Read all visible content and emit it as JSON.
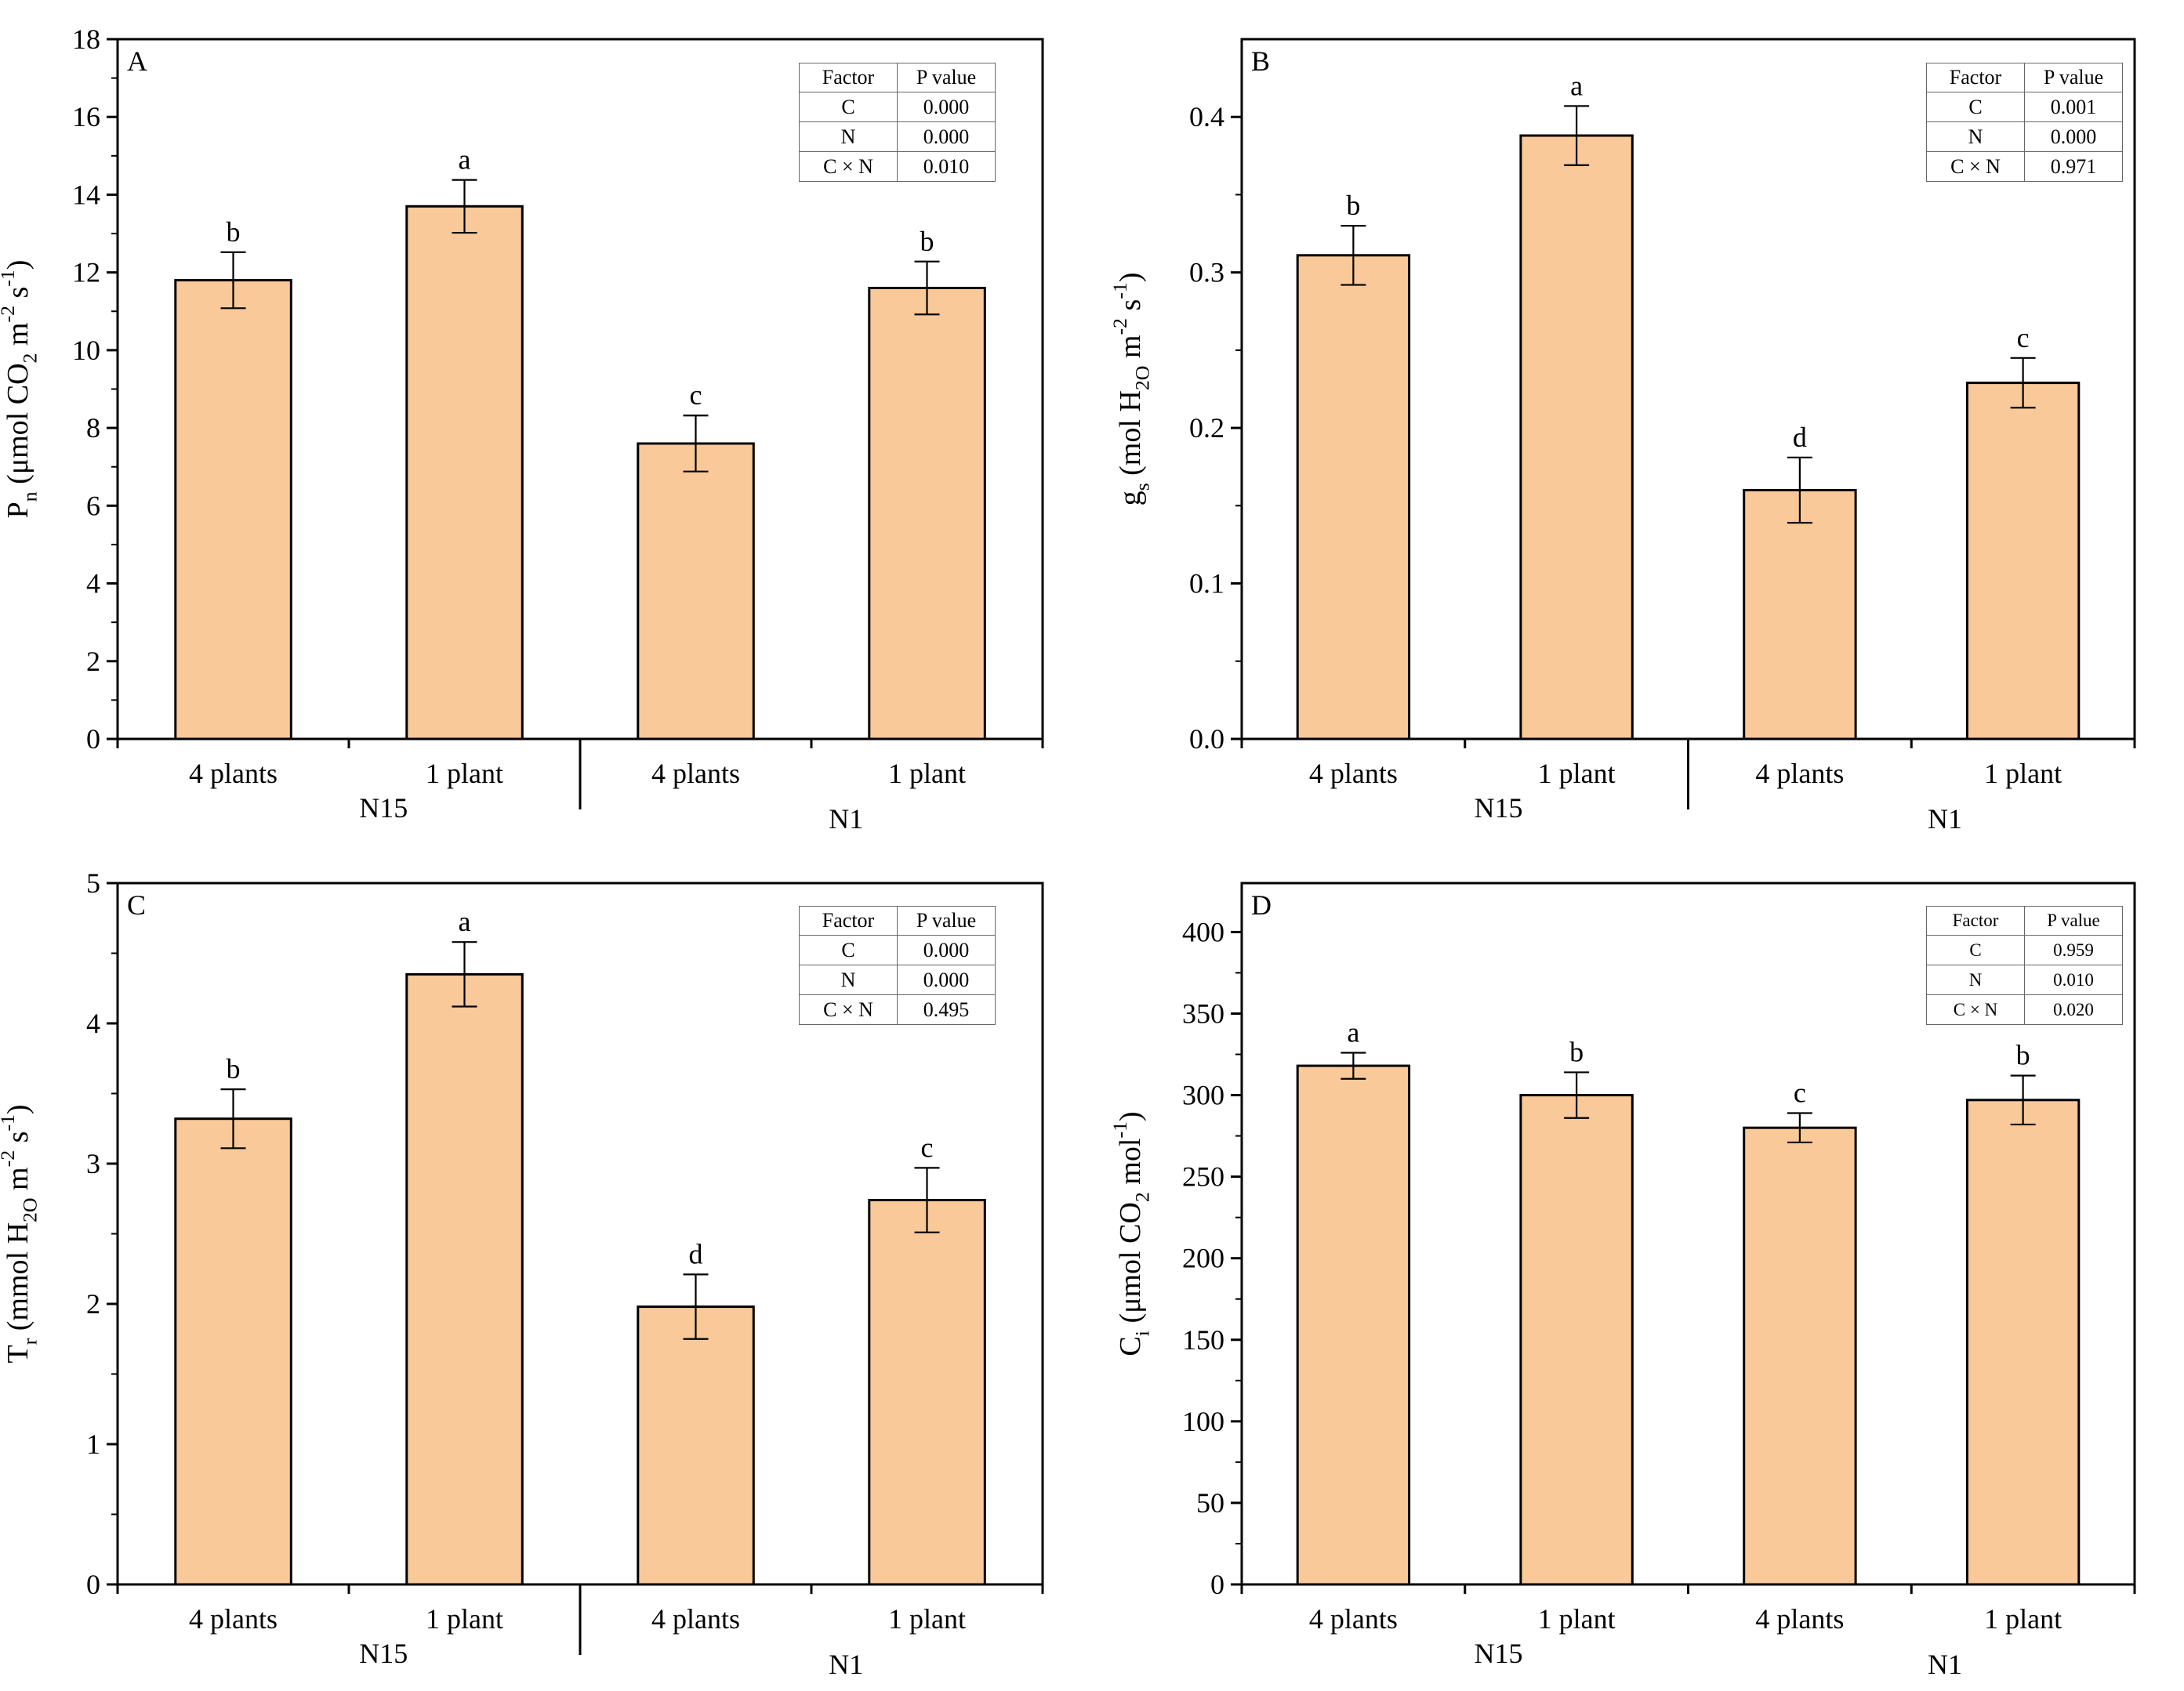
{
  "chart_data": [
    {
      "type": "bar",
      "panel_label": "A",
      "ylabel": "P_n (μmol CO_2 m^-2 s^-1)",
      "ylim": [
        0,
        18
      ],
      "yticks": [
        0,
        2,
        4,
        6,
        8,
        10,
        12,
        14,
        16,
        18
      ],
      "ytick_labels": [
        "0",
        "2",
        "4",
        "6",
        "8",
        "10",
        "12",
        "14",
        "16",
        "18"
      ],
      "categories": [
        "4 plants",
        "1 plant",
        "4 plants",
        "1 plant"
      ],
      "groups": [
        "N15",
        "N1"
      ],
      "values": [
        11.8,
        13.7,
        7.6,
        11.6
      ],
      "errors": [
        0.72,
        0.68,
        0.72,
        0.68
      ],
      "letters": [
        "b",
        "a",
        "c",
        "b"
      ],
      "bar_color": "#F9C99A",
      "group_divider": true,
      "stats_table": {
        "header": [
          "Factor",
          "P value"
        ],
        "rows": [
          [
            "C",
            "0.000"
          ],
          [
            "N",
            "0.000"
          ],
          [
            "C × N",
            "0.010"
          ]
        ]
      }
    },
    {
      "type": "bar",
      "panel_label": "B",
      "ylabel": "g_s (mol H_2O m^-2 s^-1)",
      "ylim": [
        0,
        0.45
      ],
      "yticks": [
        0,
        0.1,
        0.2,
        0.3,
        0.4
      ],
      "ytick_labels": [
        "0.0",
        "0.1",
        "0.2",
        "0.3",
        "0.4"
      ],
      "categories": [
        "4 plants",
        "1 plant",
        "4 plants",
        "1 plant"
      ],
      "groups": [
        "N15",
        "N1"
      ],
      "values": [
        0.311,
        0.388,
        0.16,
        0.229
      ],
      "errors": [
        0.019,
        0.019,
        0.021,
        0.016
      ],
      "letters": [
        "b",
        "a",
        "d",
        "c"
      ],
      "bar_color": "#F9C99A",
      "group_divider": true,
      "stats_table": {
        "header": [
          "Factor",
          "P value"
        ],
        "rows": [
          [
            "C",
            "0.001"
          ],
          [
            "N",
            "0.000"
          ],
          [
            "C × N",
            "0.971"
          ]
        ]
      }
    },
    {
      "type": "bar",
      "panel_label": "C",
      "ylabel": "T_r (mmol H_2O m^-2 s^-1)",
      "ylim": [
        0,
        5
      ],
      "yticks": [
        0,
        1,
        2,
        3,
        4,
        5
      ],
      "ytick_labels": [
        "0",
        "1",
        "2",
        "3",
        "4",
        "5"
      ],
      "categories": [
        "4 plants",
        "1 plant",
        "4 plants",
        "1 plant"
      ],
      "groups": [
        "N15",
        "N1"
      ],
      "values": [
        3.32,
        4.35,
        1.98,
        2.74
      ],
      "errors": [
        0.21,
        0.23,
        0.23,
        0.23
      ],
      "letters": [
        "b",
        "a",
        "d",
        "c"
      ],
      "bar_color": "#F9C99A",
      "group_divider": true,
      "stats_table": {
        "header": [
          "Factor",
          "P value"
        ],
        "rows": [
          [
            "C",
            "0.000"
          ],
          [
            "N",
            "0.000"
          ],
          [
            "C × N",
            "0.495"
          ]
        ]
      }
    },
    {
      "type": "bar",
      "panel_label": "D",
      "ylabel": "C_i (μmol CO_2 mol^-1)",
      "ylim": [
        0,
        430
      ],
      "yticks": [
        0,
        50,
        100,
        150,
        200,
        250,
        300,
        350,
        400
      ],
      "ytick_labels": [
        "0",
        "50",
        "100",
        "150",
        "200",
        "250",
        "300",
        "350",
        "400"
      ],
      "categories": [
        "4 plants",
        "1 plant",
        "4 plants",
        "1 plant"
      ],
      "groups": [
        "N15",
        "N1"
      ],
      "values": [
        318,
        300,
        280,
        297
      ],
      "errors": [
        8,
        14,
        9,
        15
      ],
      "letters": [
        "a",
        "b",
        "c",
        "b"
      ],
      "bar_color": "#F9C99A",
      "group_divider": false,
      "stats_table": {
        "header": [
          "Factor",
          "P value"
        ],
        "rows": [
          [
            "C",
            "0.959"
          ],
          [
            "N",
            "0.010"
          ],
          [
            "C × N",
            "0.020"
          ]
        ]
      }
    }
  ]
}
